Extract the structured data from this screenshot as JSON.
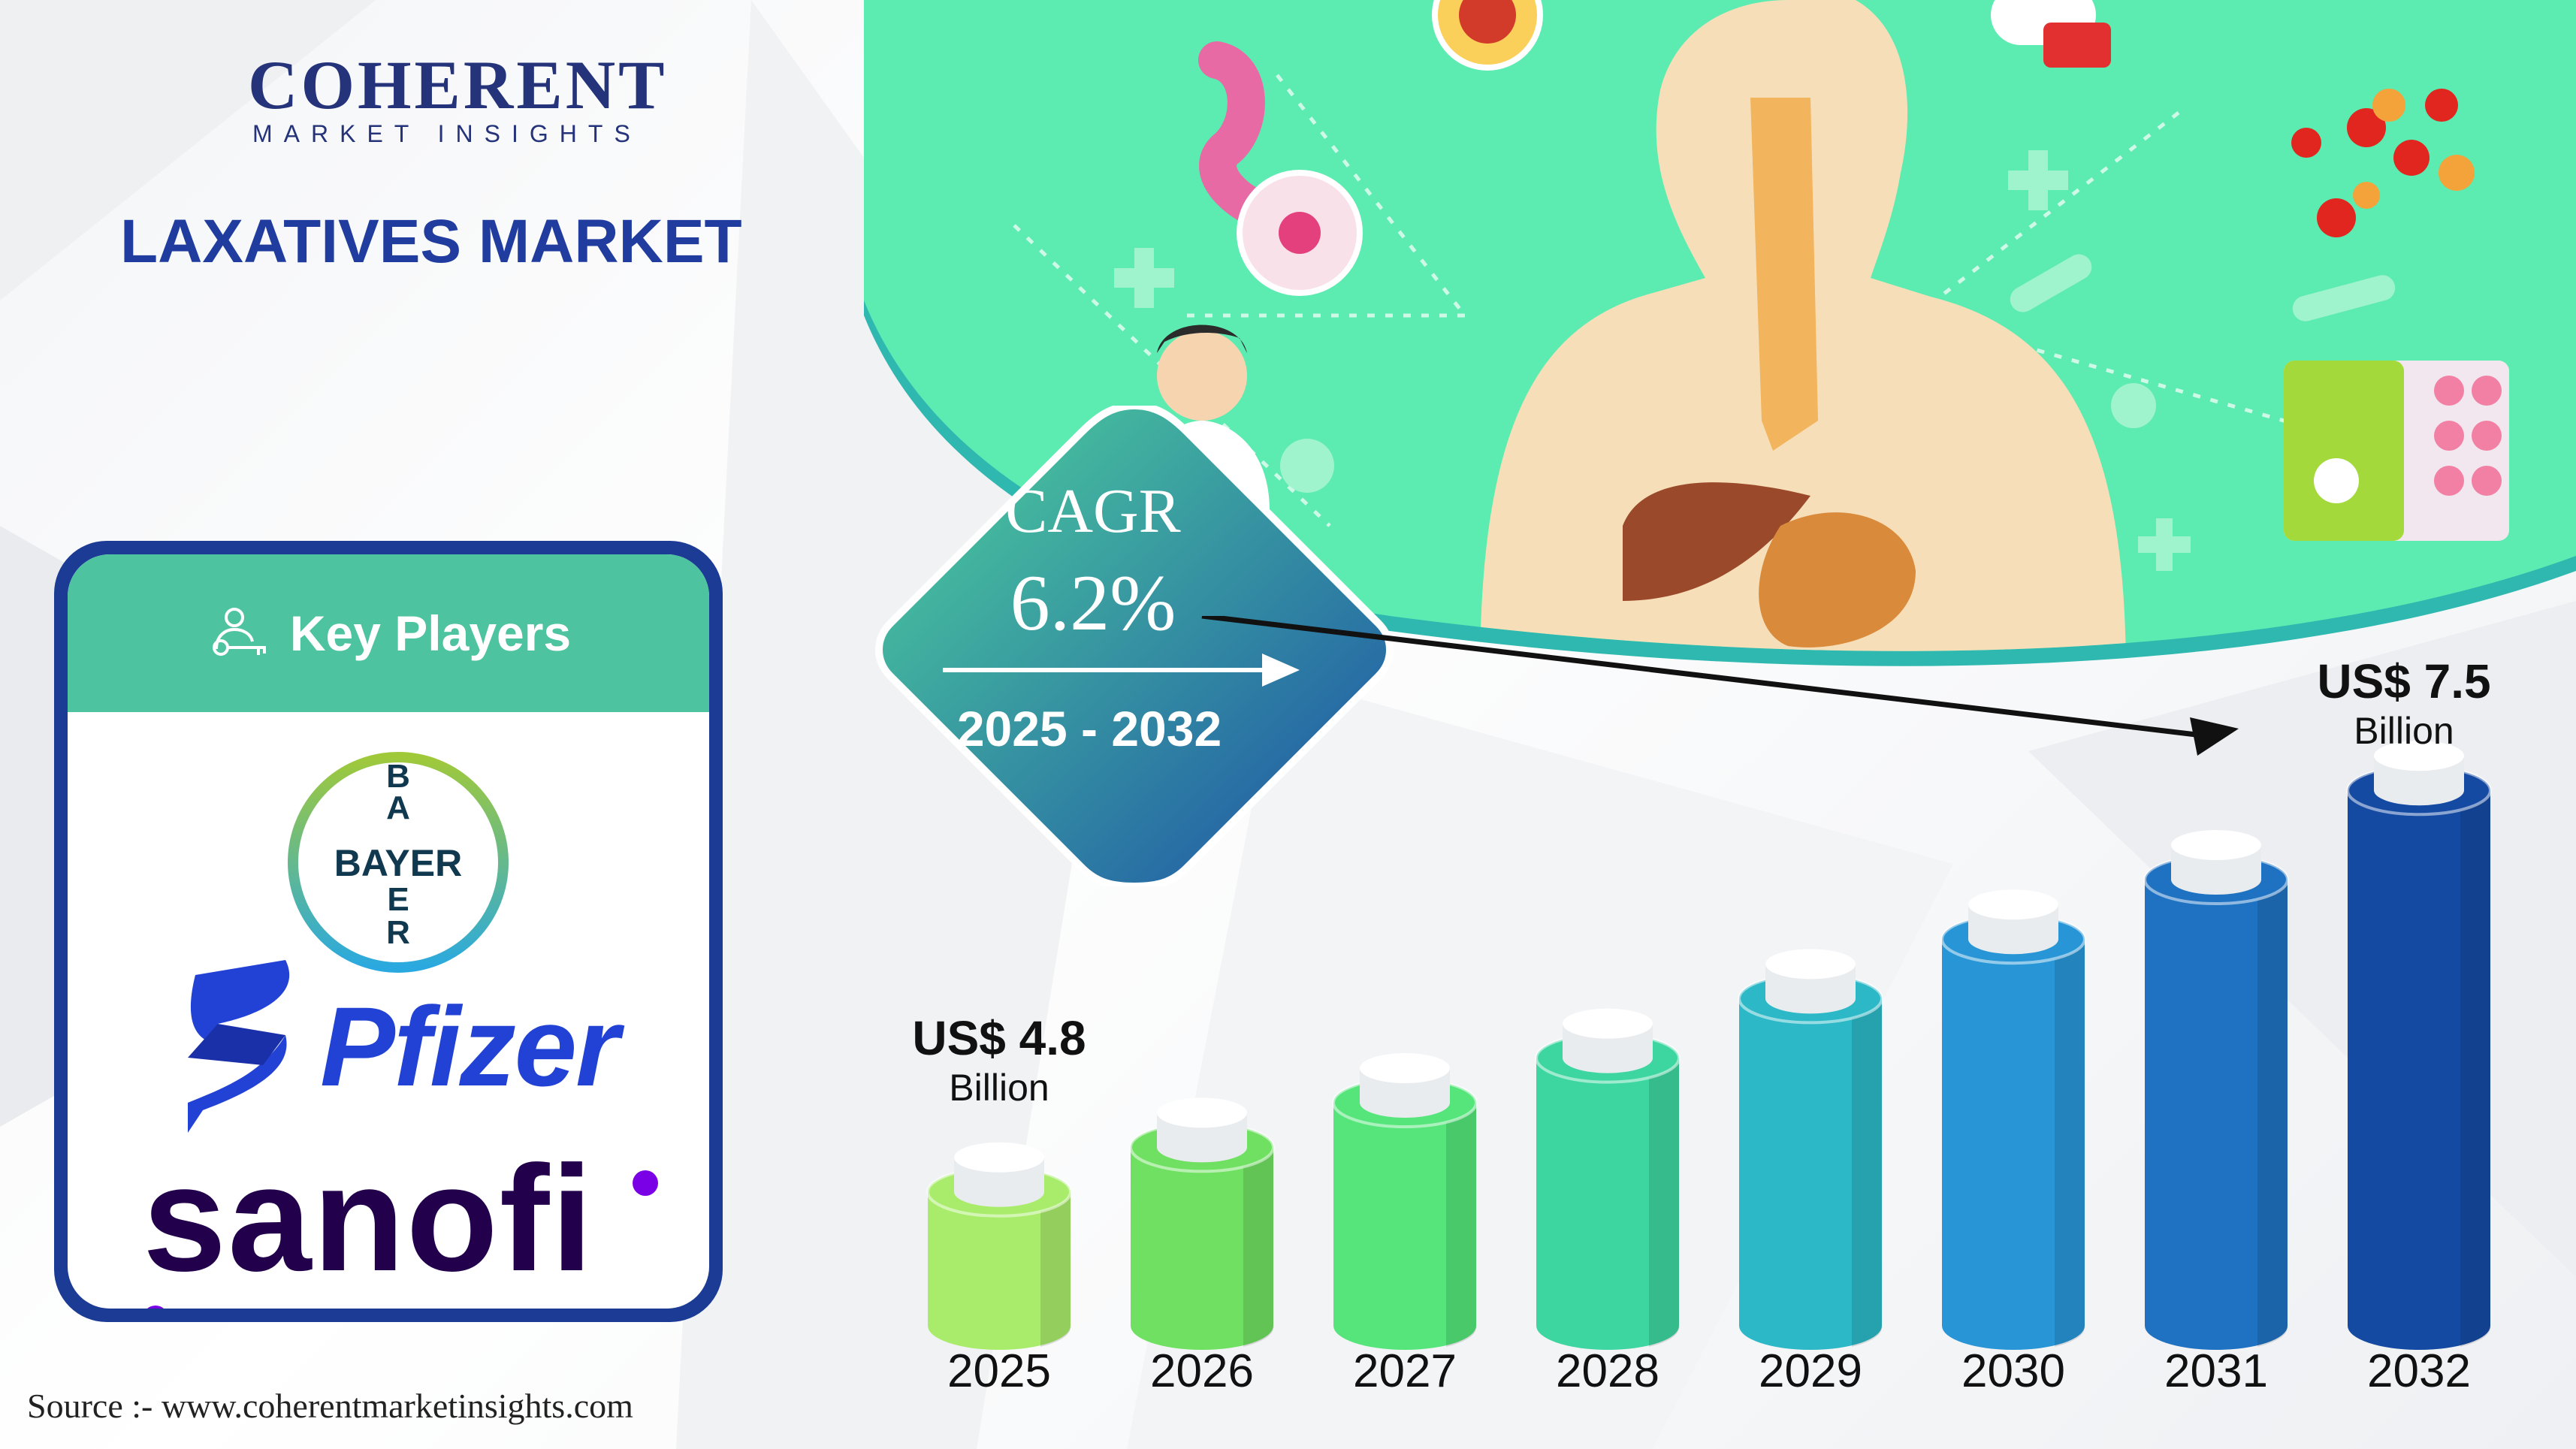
{
  "brand": {
    "name": "COHERENT",
    "tagline": "MARKET INSIGHTS"
  },
  "title": "LAXATIVES MARKET",
  "key_players": {
    "heading": "Key Players",
    "companies": [
      "BAYER",
      "Pfizer",
      "sanofi"
    ]
  },
  "cagr": {
    "label": "CAGR",
    "value": "6.2%",
    "period": "2025 - 2032"
  },
  "start_callout": {
    "value": "US$ 4.8",
    "unit": "Billion"
  },
  "end_callout": {
    "value": "US$ 7.5",
    "unit": "Billion"
  },
  "source": "Source :-  www.coherentmarketinsights.com",
  "chart_data": {
    "type": "bar",
    "categories": [
      "2025",
      "2026",
      "2027",
      "2028",
      "2029",
      "2030",
      "2031",
      "2032"
    ],
    "values": [
      4.8,
      5.1,
      5.4,
      5.7,
      6.1,
      6.5,
      6.9,
      7.5
    ],
    "ylabel": "",
    "unit": "US$ Billion",
    "colors": [
      "#a9ec6b",
      "#6fe061",
      "#55e57a",
      "#3ed6a0",
      "#2cb8c7",
      "#2896d6",
      "#1f72c2",
      "#154aa3"
    ]
  },
  "colors": {
    "navy": "#1c3b94",
    "teal": "#4ec3a0",
    "illustration_bg": "#55e6a5",
    "pfizer_blue": "#2242d6",
    "sanofi_purple": "#7a00e6"
  }
}
